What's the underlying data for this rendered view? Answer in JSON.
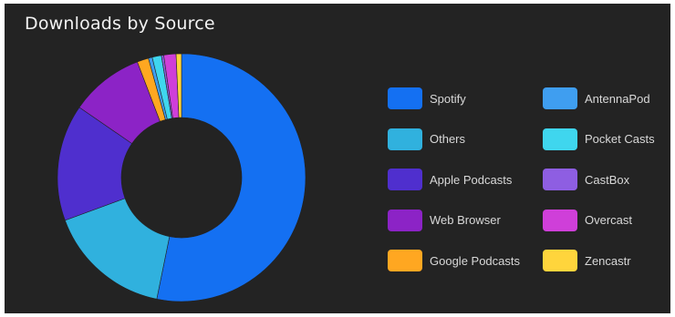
{
  "card": {
    "title": "Downloads by Source"
  },
  "chart_data": {
    "type": "pie",
    "title": "Downloads by Source",
    "donut": true,
    "legend_position": "right",
    "series": [
      {
        "name": "Spotify",
        "value": 53.2,
        "color": "#1470f2"
      },
      {
        "name": "Others",
        "value": 16.2,
        "color": "#30b1de"
      },
      {
        "name": "Apple Podcasts",
        "value": 15.2,
        "color": "#4f2fce"
      },
      {
        "name": "Web Browser",
        "value": 9.6,
        "color": "#8c23c6"
      },
      {
        "name": "Google Podcasts",
        "value": 1.5,
        "color": "#ffa721"
      },
      {
        "name": "AntennaPod",
        "value": 0.5,
        "color": "#3f9ef0"
      },
      {
        "name": "Pocket Casts",
        "value": 1.2,
        "color": "#3fd6ee"
      },
      {
        "name": "CastBox",
        "value": 0.3,
        "color": "#8e5ee2"
      },
      {
        "name": "Overcast",
        "value": 1.6,
        "color": "#cf3fd9"
      },
      {
        "name": "Zencastr",
        "value": 0.7,
        "color": "#ffd53c"
      }
    ],
    "slice_order": [
      "Spotify",
      "Others",
      "Apple Podcasts",
      "Web Browser",
      "Google Podcasts",
      "AntennaPod",
      "Pocket Casts",
      "CastBox",
      "Overcast",
      "Zencastr"
    ],
    "legend_order": [
      "Spotify",
      "AntennaPod",
      "Others",
      "Pocket Casts",
      "Apple Podcasts",
      "CastBox",
      "Web Browser",
      "Overcast",
      "Google Podcasts",
      "Zencastr"
    ]
  }
}
